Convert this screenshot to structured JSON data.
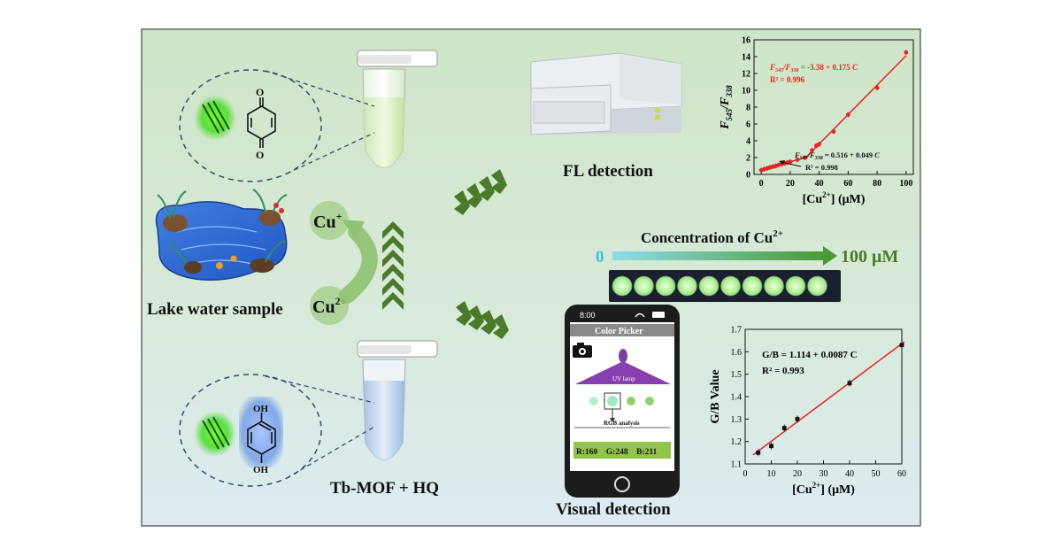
{
  "labels": {
    "lake": "Lake water sample",
    "probe": "Tb-MOF + HQ",
    "fl": "FL  detection",
    "visual": "Visual  detection",
    "cu_plus": "Cu",
    "cu_plus_sup": "+",
    "cu_2plus": "Cu",
    "cu_2plus_sup": "2+",
    "conc_title": "Concentration of Cu",
    "conc_title_sup": "2+",
    "conc_start": "0",
    "conc_end": "100 μM",
    "quinone_O_top": "O",
    "quinone_O_bottom": "O",
    "hq_OH_top": "OH",
    "hq_OH_bottom": "OH"
  },
  "phone": {
    "time": "8:00",
    "app_title": "Color Picker",
    "uv_label": "UV lamp",
    "analysis_label": "RGB analysis",
    "rgb_readout": "R:160    G:248    B:211"
  },
  "colors": {
    "bg_top": "#cfe4c6",
    "bg_bottom": "#dbe9ef",
    "accent_green": "#4e7a2c",
    "fit_line": "#e8231f",
    "well_fluor": "#c8f5b0",
    "cyan_start": "#35c4e8"
  },
  "chart_data": [
    {
      "type": "scatter",
      "xlabel": "[Cu²⁺] (μM)",
      "ylabel": "F545/F338",
      "xlim": [
        -5,
        105
      ],
      "ylim": [
        0,
        16
      ],
      "xticks": [
        0,
        20,
        40,
        60,
        80,
        100
      ],
      "yticks": [
        0,
        2,
        4,
        6,
        8,
        10,
        12,
        14,
        16
      ],
      "points": [
        {
          "x": 0,
          "y": 0.5
        },
        {
          "x": 2,
          "y": 0.62
        },
        {
          "x": 4,
          "y": 0.72
        },
        {
          "x": 6,
          "y": 0.82
        },
        {
          "x": 8,
          "y": 0.92
        },
        {
          "x": 10,
          "y": 1.0
        },
        {
          "x": 12,
          "y": 1.12
        },
        {
          "x": 14,
          "y": 1.22
        },
        {
          "x": 16,
          "y": 1.32
        },
        {
          "x": 18,
          "y": 1.4
        },
        {
          "x": 20,
          "y": 1.5
        },
        {
          "x": 25,
          "y": 1.75
        },
        {
          "x": 30,
          "y": 2.0
        },
        {
          "x": 35,
          "y": 2.85
        },
        {
          "x": 38,
          "y": 3.4
        },
        {
          "x": 40,
          "y": 3.6
        },
        {
          "x": 50,
          "y": 5.1
        },
        {
          "x": 60,
          "y": 7.1
        },
        {
          "x": 80,
          "y": 10.3
        },
        {
          "x": 100,
          "y": 14.5
        }
      ],
      "fits": [
        {
          "x": [
            0,
            30
          ],
          "eq": "0.516 + 0.049",
          "R2": "R² = 0.998"
        },
        {
          "x": [
            30,
            100
          ],
          "eq": "-3.38 + 0.175",
          "R2": "R² = 0.996"
        }
      ],
      "grid": false
    },
    {
      "type": "scatter",
      "xlabel": "[Cu²⁺] (μM)",
      "ylabel": "G/B Value",
      "xlim": [
        0,
        60
      ],
      "ylim": [
        1.1,
        1.7
      ],
      "xticks": [
        0,
        10,
        20,
        30,
        40,
        50,
        60
      ],
      "yticks": [
        1.1,
        1.2,
        1.3,
        1.4,
        1.5,
        1.6,
        1.7
      ],
      "points": [
        {
          "x": 5,
          "y": 1.15
        },
        {
          "x": 10,
          "y": 1.18
        },
        {
          "x": 15,
          "y": 1.26
        },
        {
          "x": 20,
          "y": 1.3
        },
        {
          "x": 40,
          "y": 1.46
        },
        {
          "x": 60,
          "y": 1.63
        }
      ],
      "fit": {
        "x": [
          5,
          60
        ],
        "eq": "G/B = 1.114 + 0.0087 C",
        "R2": "R² = 0.993"
      },
      "grid": false
    }
  ]
}
